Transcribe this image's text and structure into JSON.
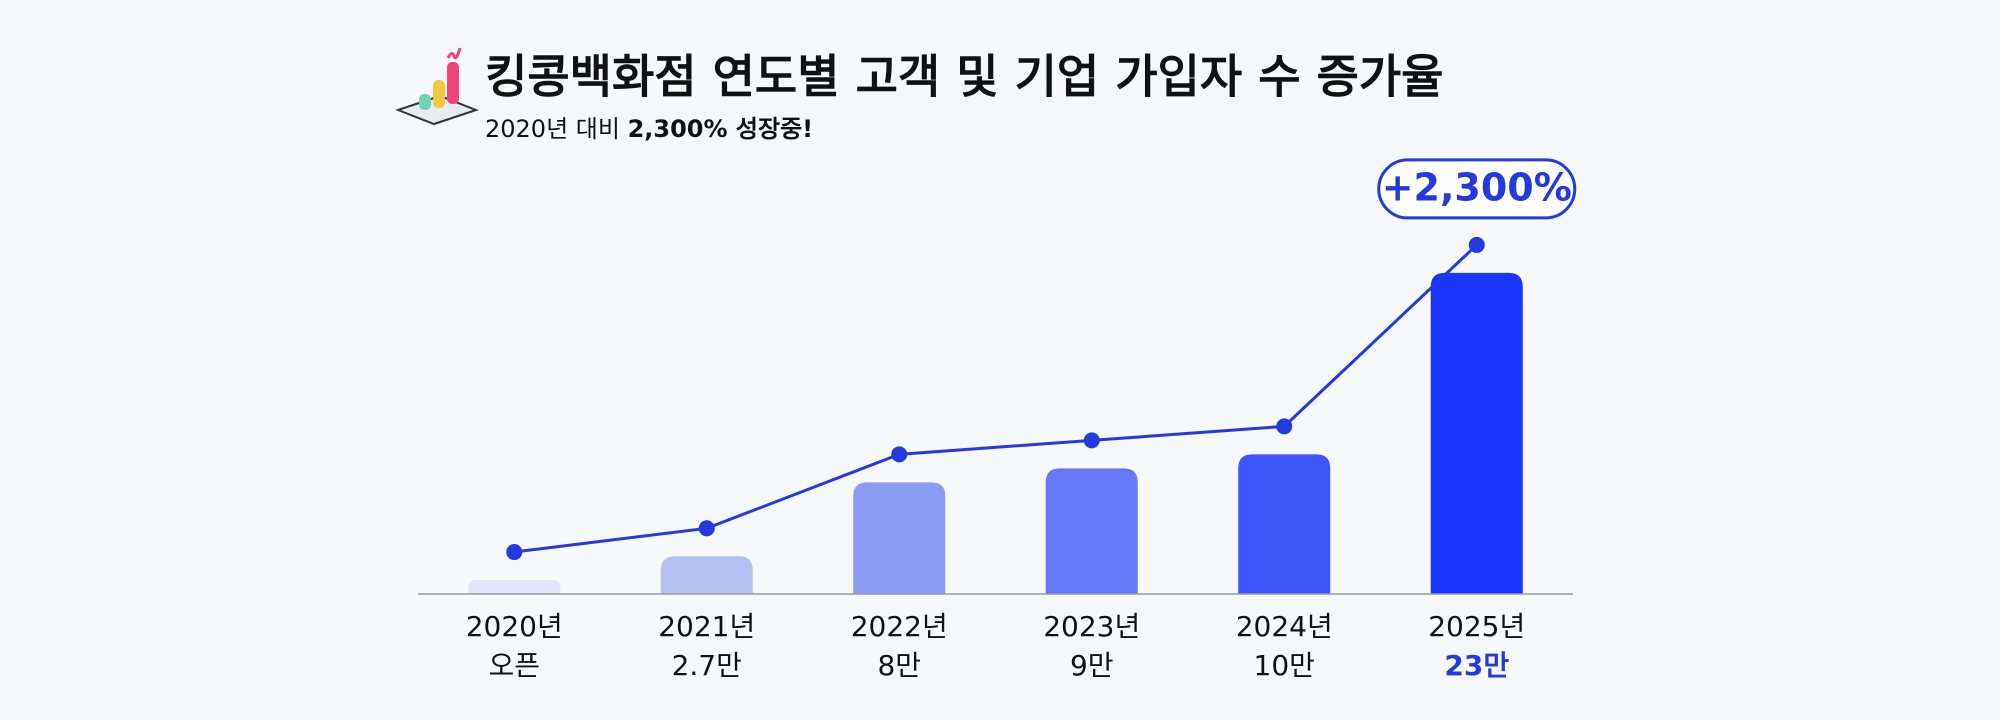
{
  "chart_data": {
    "type": "bar_line",
    "title": "킹콩백화점 연도별 고객 및 기업 가입자 수 증가율",
    "subtitle": [
      "2020년 대비",
      "2,300% 성장중!"
    ],
    "annotation": "+2,300%",
    "categories": [
      "2020년",
      "2021년",
      "2022년",
      "2023년",
      "2024년",
      "2025년"
    ],
    "values": [
      1,
      2.7,
      8,
      9,
      10,
      23
    ],
    "value_labels": [
      "오픈",
      "2.7만",
      "8만",
      "9만",
      "10만",
      "23만"
    ],
    "colors": [
      "#e0e5fa",
      "#b6c0f0",
      "#8a9af5",
      "#6579f7",
      "#3d56fa",
      "#1a35ff"
    ],
    "line_color": "#2439e0",
    "highlight_color": "#2439e0",
    "ylim": [
      0,
      25
    ]
  }
}
